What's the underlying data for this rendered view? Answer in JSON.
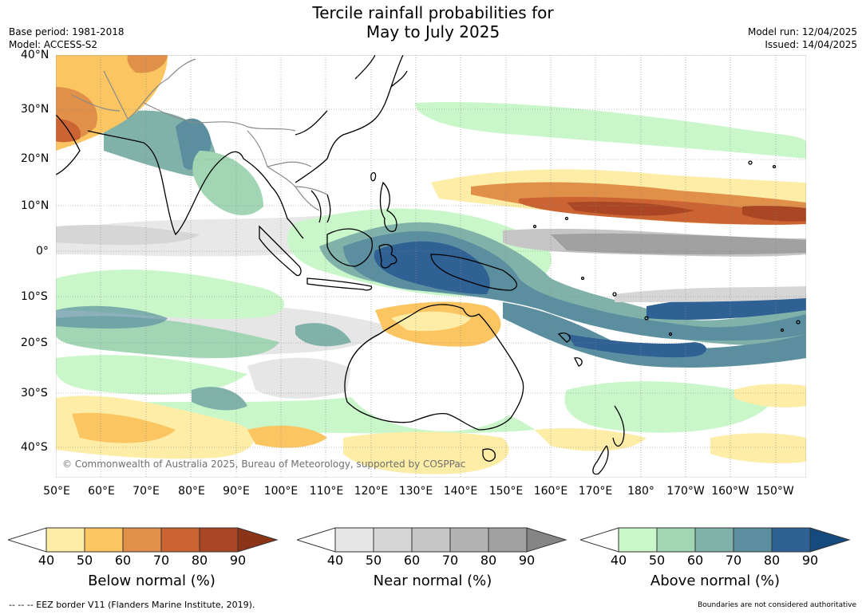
{
  "title_line1": "Tercile rainfall probabilities for",
  "title_line2": "May to July 2025",
  "meta_left": [
    "Base period: 1981-2018",
    "Model: ACCESS-S2"
  ],
  "meta_right": [
    "Model run: 12/04/2025",
    "Issued: 14/04/2025"
  ],
  "lat_labels": [
    "40°N",
    "30°N",
    "20°N",
    "10°N",
    "0°",
    "10°S",
    "20°S",
    "30°S",
    "40°S"
  ],
  "lon_labels": [
    "50°E",
    "60°E",
    "70°E",
    "80°E",
    "90°E",
    "100°E",
    "110°E",
    "120°E",
    "130°E",
    "140°E",
    "150°E",
    "160°E",
    "170°E",
    "180°",
    "170°W",
    "160°W",
    "150°W"
  ],
  "copyright": "© Commonwealth of Australia 2025, Bureau of Meteorology, supported by COSPPac",
  "colorbars": [
    {
      "label": "Below normal (%)",
      "ticks": [
        "40",
        "50",
        "60",
        "70",
        "80",
        "90"
      ],
      "colors": [
        "#fdeda6",
        "#fbc561",
        "#e09048",
        "#cb6333",
        "#aa4624",
        "#8b3417"
      ]
    },
    {
      "label": "Near normal (%)",
      "ticks": [
        "40",
        "50",
        "60",
        "70",
        "80",
        "90"
      ],
      "colors": [
        "#e6e6e6",
        "#d6d6d6",
        "#c6c6c6",
        "#b3b3b3",
        "#a1a1a1",
        "#858585"
      ]
    },
    {
      "label": "Above normal (%)",
      "ticks": [
        "40",
        "50",
        "60",
        "70",
        "80",
        "90"
      ],
      "colors": [
        "#c9f7c9",
        "#a2d5b4",
        "#80b2aa",
        "#5b8fa0",
        "#2f6194",
        "#154a7e"
      ]
    }
  ],
  "footer_left": "--  --  -- EEZ border V11 (Flanders Marine Institute, 2019).",
  "footer_right": "Boundaries are not considered authoritative"
}
